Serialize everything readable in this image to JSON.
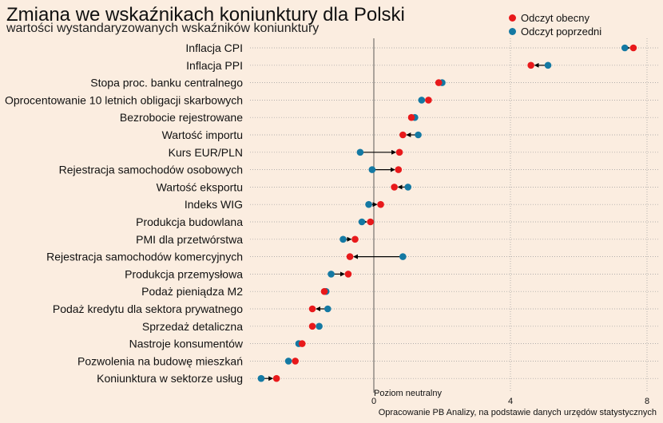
{
  "header": {
    "title": "Zmiana we wskaźnikach koniunktury dla Polski",
    "subtitle": "wartości wystandaryzowanych wskaźników koniunktury"
  },
  "colors": {
    "current": "#e8191b",
    "previous": "#1479a3",
    "background": "#fbede0"
  },
  "chart_data": {
    "type": "dumbbell",
    "title": "Zmiana we wskaźnikach koniunktury dla Polski",
    "subtitle": "wartości wystandaryzowanych wskaźników koniunktury",
    "xlim": [
      -7,
      8.3
    ],
    "xticks": [
      0,
      4,
      8
    ],
    "grid": true,
    "legend_position": "top-right",
    "series": [
      {
        "name": "Odczyt obecny",
        "key": "current"
      },
      {
        "name": "Odczyt poprzedni",
        "key": "previous"
      }
    ],
    "categories": [
      "Inflacja CPI",
      "Inflacja PPI",
      "Stopa proc. banku centralnego",
      "Oprocentowanie 10 letnich obligacji skarbowych",
      "Bezrobocie rejestrowane",
      "Wartość importu",
      "Kurs EUR/PLN",
      "Rejestracja samochodów osobowych",
      "Wartość eksportu",
      "Indeks WIG",
      "Produkcja budowlana",
      "PMI dla przetwórstwa",
      "Rejestracja samochodów komercyjnych",
      "Produkcja przemysłowa",
      "Podaż pieniądza M2",
      "Podaż kredytu dla sektora prywatnego",
      "Sprzedaż detaliczna",
      "Nastroje konsumentów",
      "Pozwolenia na budowę mieszkań",
      "Koniunktura w sektorze usług"
    ],
    "current": [
      7.6,
      4.6,
      1.9,
      1.6,
      1.1,
      0.85,
      0.75,
      0.72,
      0.6,
      0.2,
      -0.1,
      -0.55,
      -0.7,
      -0.75,
      -1.45,
      -1.8,
      -1.8,
      -2.1,
      -2.3,
      -2.85
    ],
    "previous": [
      7.35,
      5.1,
      2.0,
      1.4,
      1.2,
      1.3,
      -0.4,
      -0.05,
      1.0,
      -0.15,
      -0.35,
      -0.9,
      0.85,
      -1.25,
      -1.4,
      -1.35,
      -1.6,
      -2.2,
      -2.5,
      -3.3
    ],
    "annotations": {
      "zero_label": "Poziom neutralny",
      "source": "Opracowanie  PB Analizy, na podstawie danych urzędów statystycznych"
    }
  }
}
